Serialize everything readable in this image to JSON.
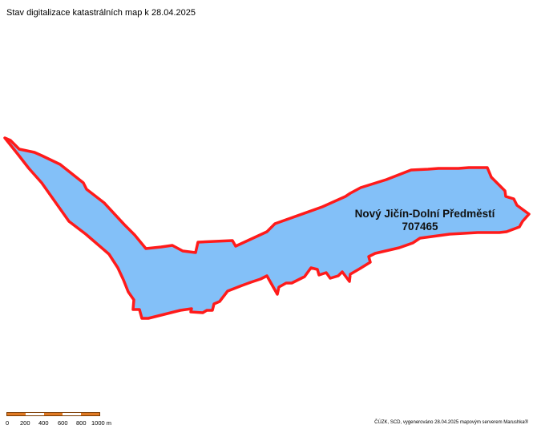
{
  "title": "Stav digitalizace katastrálních map k 28.04.2025",
  "colors": {
    "parcel_fill": "#83c0f8",
    "parcel_stroke": "#ff1a1a",
    "scale_dark": "#e07a24",
    "scale_light": "#ffffff",
    "label_text": "#111111"
  },
  "area": {
    "name": "Nový Jičín-Dolní Předměstí",
    "code": "707465"
  },
  "scale": {
    "labels": [
      "0",
      "200",
      "400",
      "600",
      "800",
      "1000 m"
    ]
  },
  "attribution": "ČÚZK, SCD, vygenerováno 28.04.2025 mapovým serverem Marushka®"
}
